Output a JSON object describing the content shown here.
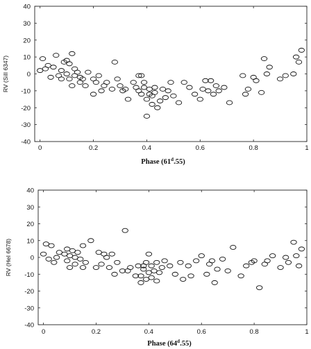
{
  "chart_data": [
    {
      "type": "scatter",
      "xlabel_pre": "Phase (61",
      "xlabel_sup": "d",
      "xlabel_post": ".55)",
      "ylabel": "RV (SiII 6347)",
      "xlim": [
        -0.02,
        1.0
      ],
      "ylim": [
        -40,
        40
      ],
      "xticks": [
        0,
        0.2,
        0.4,
        0.6,
        0.8,
        1
      ],
      "xtick_labels": [
        "0",
        "0.2",
        "0.4",
        "0.6",
        "0.8",
        "1"
      ],
      "yticks": [
        -40,
        -30,
        -20,
        -10,
        0,
        10,
        20,
        30,
        40
      ],
      "ytick_labels": [
        "-40",
        "-30",
        "-20",
        "-10",
        "0",
        "10",
        "20",
        "30",
        "40"
      ],
      "grid": false,
      "marker": "open-ellipse",
      "x": [
        0.0,
        0.01,
        0.02,
        0.03,
        0.04,
        0.05,
        0.06,
        0.07,
        0.08,
        0.08,
        0.09,
        0.1,
        0.1,
        0.11,
        0.11,
        0.12,
        0.12,
        0.13,
        0.13,
        0.14,
        0.15,
        0.15,
        0.16,
        0.17,
        0.18,
        0.2,
        0.2,
        0.21,
        0.22,
        0.23,
        0.24,
        0.25,
        0.27,
        0.28,
        0.29,
        0.3,
        0.31,
        0.32,
        0.33,
        0.35,
        0.36,
        0.37,
        0.37,
        0.38,
        0.38,
        0.39,
        0.39,
        0.4,
        0.4,
        0.41,
        0.41,
        0.42,
        0.42,
        0.43,
        0.43,
        0.44,
        0.45,
        0.46,
        0.47,
        0.48,
        0.49,
        0.5,
        0.52,
        0.54,
        0.56,
        0.58,
        0.6,
        0.61,
        0.62,
        0.63,
        0.64,
        0.65,
        0.66,
        0.67,
        0.69,
        0.71,
        0.76,
        0.77,
        0.78,
        0.8,
        0.81,
        0.83,
        0.84,
        0.85,
        0.86,
        0.9,
        0.92,
        0.95,
        0.96,
        0.97,
        0.98
      ],
      "y": [
        2,
        9,
        3,
        5,
        -2,
        4,
        11,
        -1,
        2,
        -3,
        7,
        8,
        0,
        -3,
        6,
        -7,
        12,
        -1,
        3,
        1,
        -2,
        -5,
        -3,
        -7,
        1,
        -12,
        -3,
        -5,
        -1,
        -10,
        -7,
        -5,
        -9,
        7,
        -3,
        -7,
        -10,
        -9,
        -15,
        -5,
        -8,
        -1,
        -10,
        -12,
        -1,
        -8,
        -5,
        -15,
        -25,
        -9,
        -12,
        -13,
        -18,
        -8,
        -11,
        -20,
        -16,
        -9,
        -14,
        -10,
        -5,
        -13,
        -17,
        -5,
        -8,
        -12,
        -15,
        -9,
        -4,
        -10,
        -4,
        -12,
        -7,
        -10,
        -8,
        -17,
        -1,
        -12,
        -9,
        -2,
        -4,
        -11,
        9,
        0,
        4,
        -3,
        -1,
        0,
        10,
        7,
        14
      ]
    },
    {
      "type": "scatter",
      "xlabel_pre": "Phase (64",
      "xlabel_sup": "d",
      "xlabel_post": ".55)",
      "ylabel": "RV (HeI 6678)",
      "xlim": [
        -0.02,
        1.0
      ],
      "ylim": [
        -40,
        40
      ],
      "xticks": [
        0,
        0.2,
        0.4,
        0.6,
        0.8,
        1
      ],
      "xtick_labels": [
        "0",
        "0.2",
        "0.4",
        "0.6",
        "0.8",
        "1"
      ],
      "yticks": [
        -40,
        -30,
        -20,
        -10,
        0,
        10,
        20,
        30,
        40
      ],
      "ytick_labels": [
        "-40",
        "-30",
        "-20",
        "-10",
        "0",
        "10",
        "20",
        "30",
        "40"
      ],
      "grid": false,
      "marker": "open-ellipse",
      "x": [
        0.0,
        0.01,
        0.02,
        0.03,
        0.04,
        0.05,
        0.06,
        0.08,
        0.09,
        0.09,
        0.1,
        0.1,
        0.11,
        0.12,
        0.12,
        0.13,
        0.14,
        0.15,
        0.15,
        0.16,
        0.18,
        0.2,
        0.21,
        0.22,
        0.23,
        0.24,
        0.25,
        0.26,
        0.27,
        0.28,
        0.3,
        0.31,
        0.32,
        0.33,
        0.35,
        0.36,
        0.37,
        0.37,
        0.38,
        0.38,
        0.39,
        0.39,
        0.4,
        0.4,
        0.41,
        0.41,
        0.42,
        0.43,
        0.43,
        0.44,
        0.45,
        0.46,
        0.48,
        0.5,
        0.52,
        0.53,
        0.55,
        0.56,
        0.58,
        0.6,
        0.62,
        0.63,
        0.64,
        0.65,
        0.66,
        0.68,
        0.7,
        0.72,
        0.75,
        0.77,
        0.79,
        0.8,
        0.82,
        0.84,
        0.85,
        0.87,
        0.9,
        0.92,
        0.93,
        0.95,
        0.96,
        0.97,
        0.98
      ],
      "y": [
        2,
        8,
        -1,
        7,
        -3,
        0,
        3,
        2,
        -2,
        5,
        -6,
        1,
        4,
        -4,
        0,
        3,
        -1,
        -6,
        7,
        -3,
        10,
        -6,
        3,
        -4,
        2,
        0,
        -6,
        2,
        -10,
        -3,
        -8,
        16,
        -8,
        -6,
        -11,
        -5,
        -11,
        -15,
        -7,
        -5,
        -3,
        -13,
        -9,
        2,
        -12,
        -5,
        -8,
        -14,
        -3,
        -9,
        -6,
        -2,
        -5,
        -10,
        -3,
        -13,
        -5,
        -11,
        -2,
        1,
        -10,
        -4,
        -2,
        -15,
        -7,
        -1,
        -8,
        6,
        -11,
        -5,
        -3,
        -2,
        -18,
        -4,
        -2,
        1,
        -6,
        0,
        -3,
        9,
        1,
        -5,
        5
      ]
    }
  ]
}
